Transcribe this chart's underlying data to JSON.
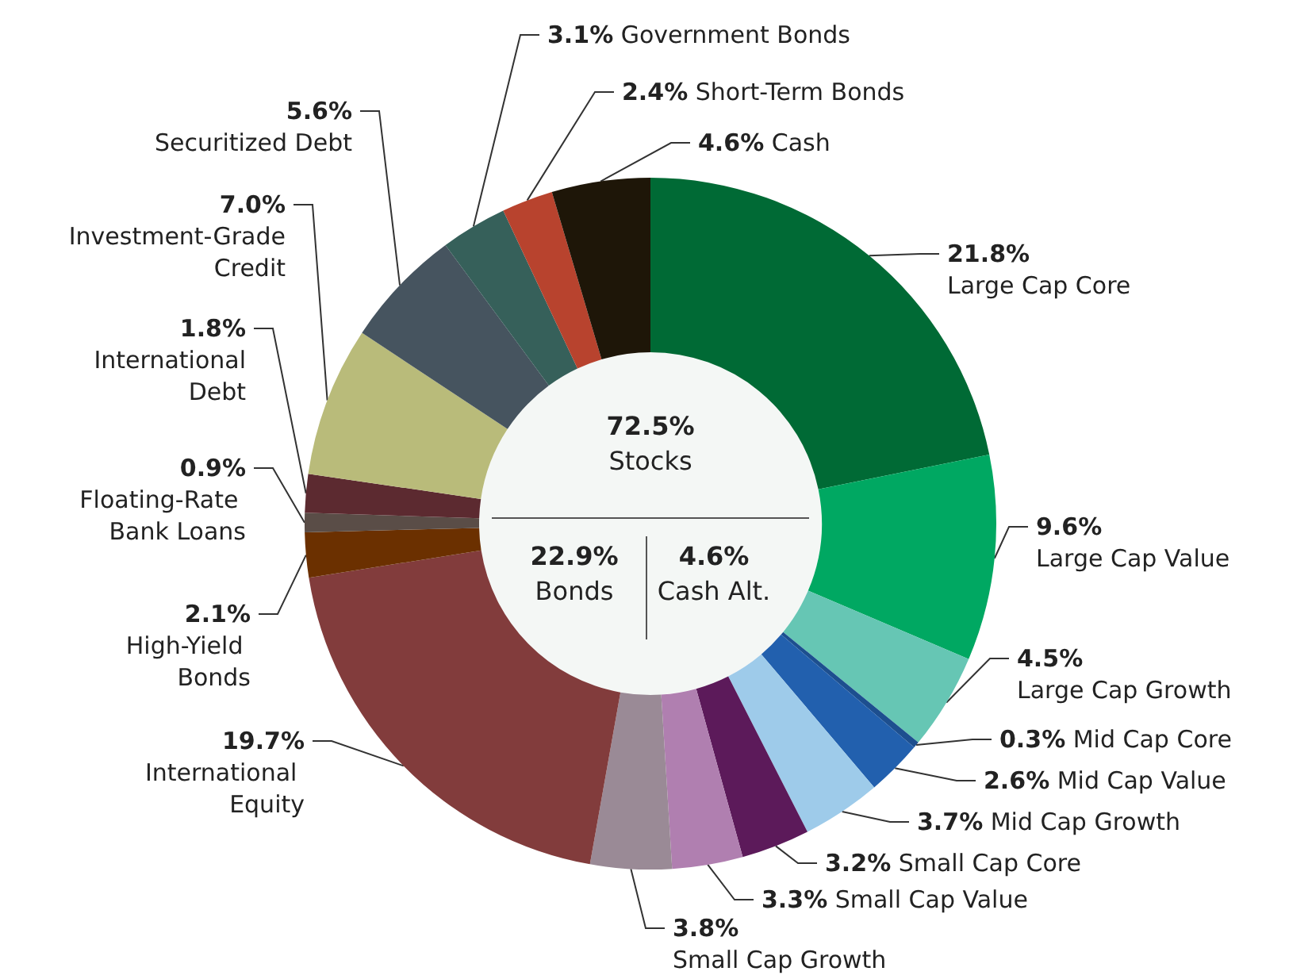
{
  "chart_data": {
    "type": "donut",
    "categories": [
      "Large Cap Core",
      "Large Cap Value",
      "Large Cap Growth",
      "Mid Cap Core",
      "Mid Cap Value",
      "Mid Cap Growth",
      "Small Cap Core",
      "Small Cap Value",
      "Small Cap Growth",
      "International Equity",
      "High-Yield Bonds",
      "Floating-Rate Bank Loans",
      "International Debt",
      "Investment-Grade Credit",
      "Securitized Debt",
      "Government Bonds",
      "Short-Term Bonds",
      "Cash"
    ],
    "values": [
      21.8,
      9.6,
      4.5,
      0.3,
      2.6,
      3.7,
      3.2,
      3.3,
      3.8,
      19.7,
      2.1,
      0.9,
      1.8,
      7.0,
      5.6,
      3.1,
      2.4,
      4.6
    ],
    "value_labels": [
      "21.8%",
      "9.6%",
      "4.5%",
      "0.3%",
      "2.6%",
      "3.7%",
      "3.2%",
      "3.3%",
      "3.8%",
      "19.7%",
      "2.1%",
      "0.9%",
      "1.8%",
      "7.0%",
      "5.6%",
      "3.1%",
      "2.4%",
      "4.6%"
    ],
    "colors": [
      "#006a35",
      "#00a862",
      "#66c6b4",
      "#1d4f8f",
      "#2260ae",
      "#9ecbea",
      "#5c1a5a",
      "#b07fb0",
      "#9a8a96",
      "#823c3c",
      "#6b3000",
      "#5a4d47",
      "#5c2a30",
      "#b9bb7a",
      "#46545f",
      "#36605a",
      "#b8432e",
      "#1e1608"
    ],
    "annotations": [
      "72.5%",
      "Stocks",
      "22.9%",
      "Bonds",
      "4.6%",
      "Cash Alt."
    ],
    "legend": false
  }
}
